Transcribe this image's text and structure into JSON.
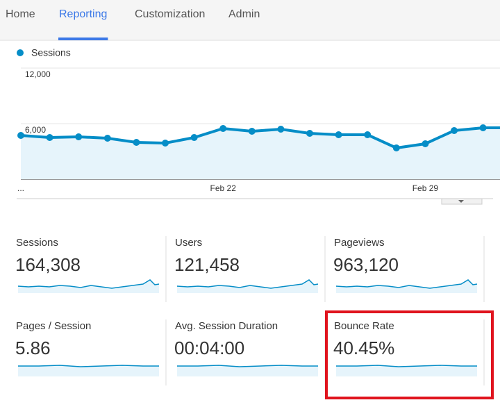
{
  "nav": [
    "Home",
    "Reporting",
    "Customization",
    "Admin"
  ],
  "active_nav": 1,
  "chart_data": {
    "type": "line",
    "categories": [
      "...",
      null,
      null,
      null,
      null,
      null,
      null,
      "Feb 22",
      null,
      null,
      null,
      null,
      null,
      null,
      "Feb 29",
      null,
      null
    ],
    "series": [
      {
        "name": "Sessions",
        "color": "#058dc7",
        "values": [
          4725,
          4500,
          4575,
          4425,
          3975,
          3900,
          4500,
          5475,
          5175,
          5400,
          4950,
          4800,
          4800,
          3375,
          3825,
          5250,
          5550
        ]
      }
    ],
    "ylim": [
      0,
      12000
    ],
    "yticks": [
      {
        "value": 6000,
        "label": "6,000"
      },
      {
        "value": 12000,
        "label": "12,000"
      }
    ],
    "grid": true
  },
  "metrics": [
    {
      "label": "Sessions",
      "value": "164,308"
    },
    {
      "label": "Users",
      "value": "121,458"
    },
    {
      "label": "Pageviews",
      "value": "963,120"
    },
    {
      "label": "Pages / Session",
      "value": "5.86"
    },
    {
      "label": "Avg. Session Duration",
      "value": "00:04:00"
    },
    {
      "label": "Bounce Rate",
      "value": "40.45%"
    }
  ],
  "highlighted_metric": 5
}
